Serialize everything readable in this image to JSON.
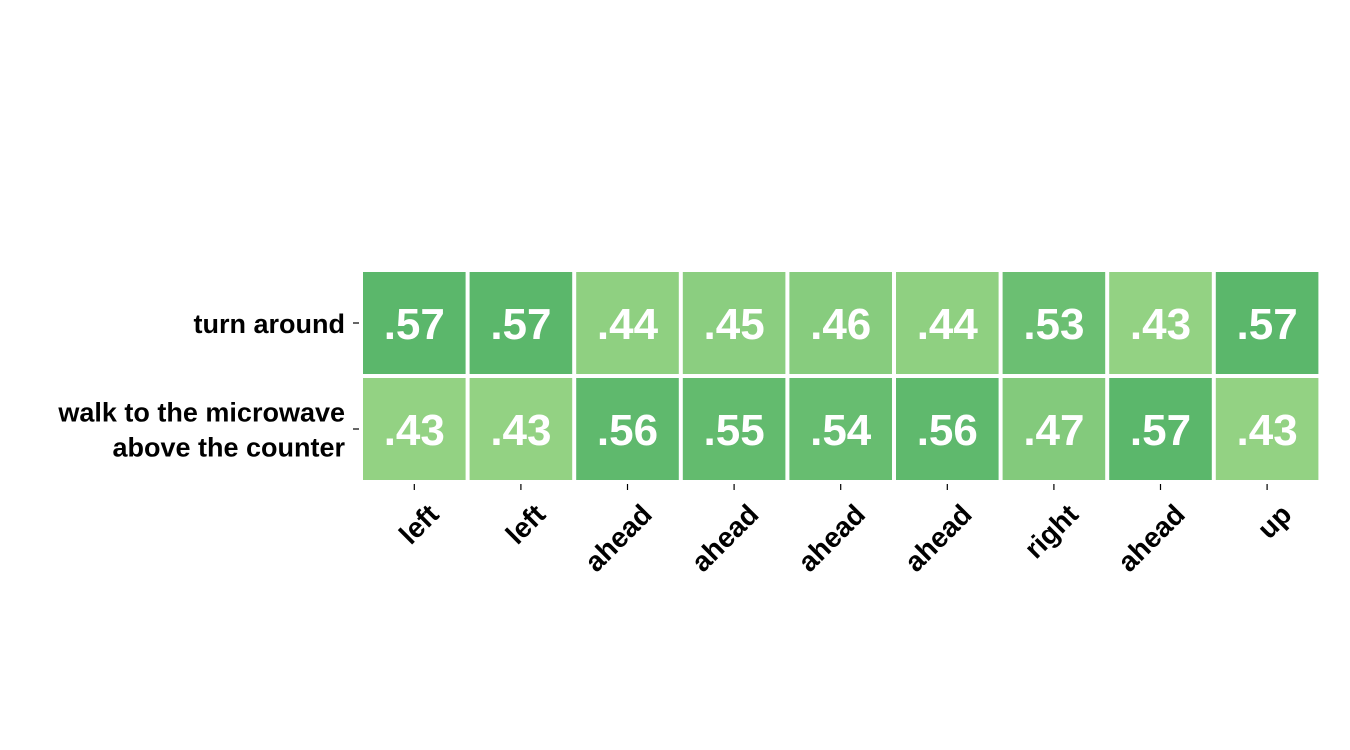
{
  "chart_data": {
    "type": "heatmap",
    "rows": [
      [
        "turn around"
      ],
      [
        "walk to the microwave",
        "above the counter"
      ]
    ],
    "columns": [
      "left",
      "left",
      "ahead",
      "ahead",
      "ahead",
      "ahead",
      "right",
      "ahead",
      "up"
    ],
    "values": [
      [
        0.57,
        0.57,
        0.44,
        0.45,
        0.46,
        0.44,
        0.53,
        0.43,
        0.57
      ],
      [
        0.43,
        0.43,
        0.56,
        0.55,
        0.54,
        0.56,
        0.47,
        0.57,
        0.43
      ]
    ],
    "value_labels": [
      [
        ".57",
        ".57",
        ".44",
        ".45",
        ".46",
        ".44",
        ".53",
        ".43",
        ".57"
      ],
      [
        ".43",
        ".43",
        ".56",
        ".55",
        ".54",
        ".56",
        ".47",
        ".57",
        ".43"
      ]
    ],
    "colormap": {
      "min_value": 0.43,
      "max_value": 0.57,
      "low_color": "#93d283",
      "high_color": "#5bb76b"
    },
    "cell_text_color": "#ffffff",
    "cell_border_color": "#ffffff",
    "title": "",
    "xlabel": "",
    "ylabel": ""
  }
}
